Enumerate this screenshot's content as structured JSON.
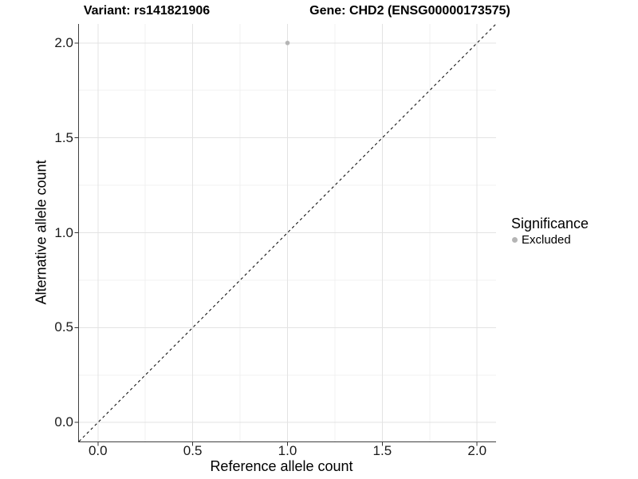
{
  "chart_data": {
    "type": "scatter",
    "title_left": "Variant: rs141821906",
    "title_right": "Gene: CHD2 (ENSG00000173575)",
    "xlabel": "Reference allele count",
    "ylabel": "Alternative allele count",
    "xlim": [
      -0.1,
      2.1
    ],
    "ylim": [
      -0.1,
      2.1
    ],
    "x_ticks": [
      0.0,
      0.5,
      1.0,
      1.5,
      2.0
    ],
    "x_tick_labels": [
      "0.0",
      "0.5",
      "1.0",
      "1.5",
      "2.0"
    ],
    "y_ticks": [
      0.0,
      0.5,
      1.0,
      1.5,
      2.0
    ],
    "y_tick_labels": [
      "0.0",
      "0.5",
      "1.0",
      "1.5",
      "2.0"
    ],
    "x_minor_ticks": [
      0.25,
      0.75,
      1.25,
      1.75
    ],
    "y_minor_ticks": [
      0.25,
      0.75,
      1.25,
      1.75
    ],
    "grid": "major+minor",
    "series": [
      {
        "name": "Excluded",
        "color": "#b5b5b5",
        "points": [
          {
            "x": 1.0,
            "y": 2.0
          }
        ]
      }
    ],
    "reference_line": {
      "kind": "identity y=x",
      "style": "dashed",
      "color": "#000000"
    },
    "legend": {
      "title": "Significance",
      "position": "right",
      "entries": [
        {
          "label": "Excluded",
          "color": "#b5b5b5"
        }
      ]
    }
  },
  "colors": {
    "background": "#ffffff",
    "grid_major": "#e3e3e3",
    "grid_minor": "#f0f0f0",
    "axis_line": "#404040",
    "tick_mark": "#333333",
    "text": "#000000",
    "reference_line": "#000000"
  }
}
